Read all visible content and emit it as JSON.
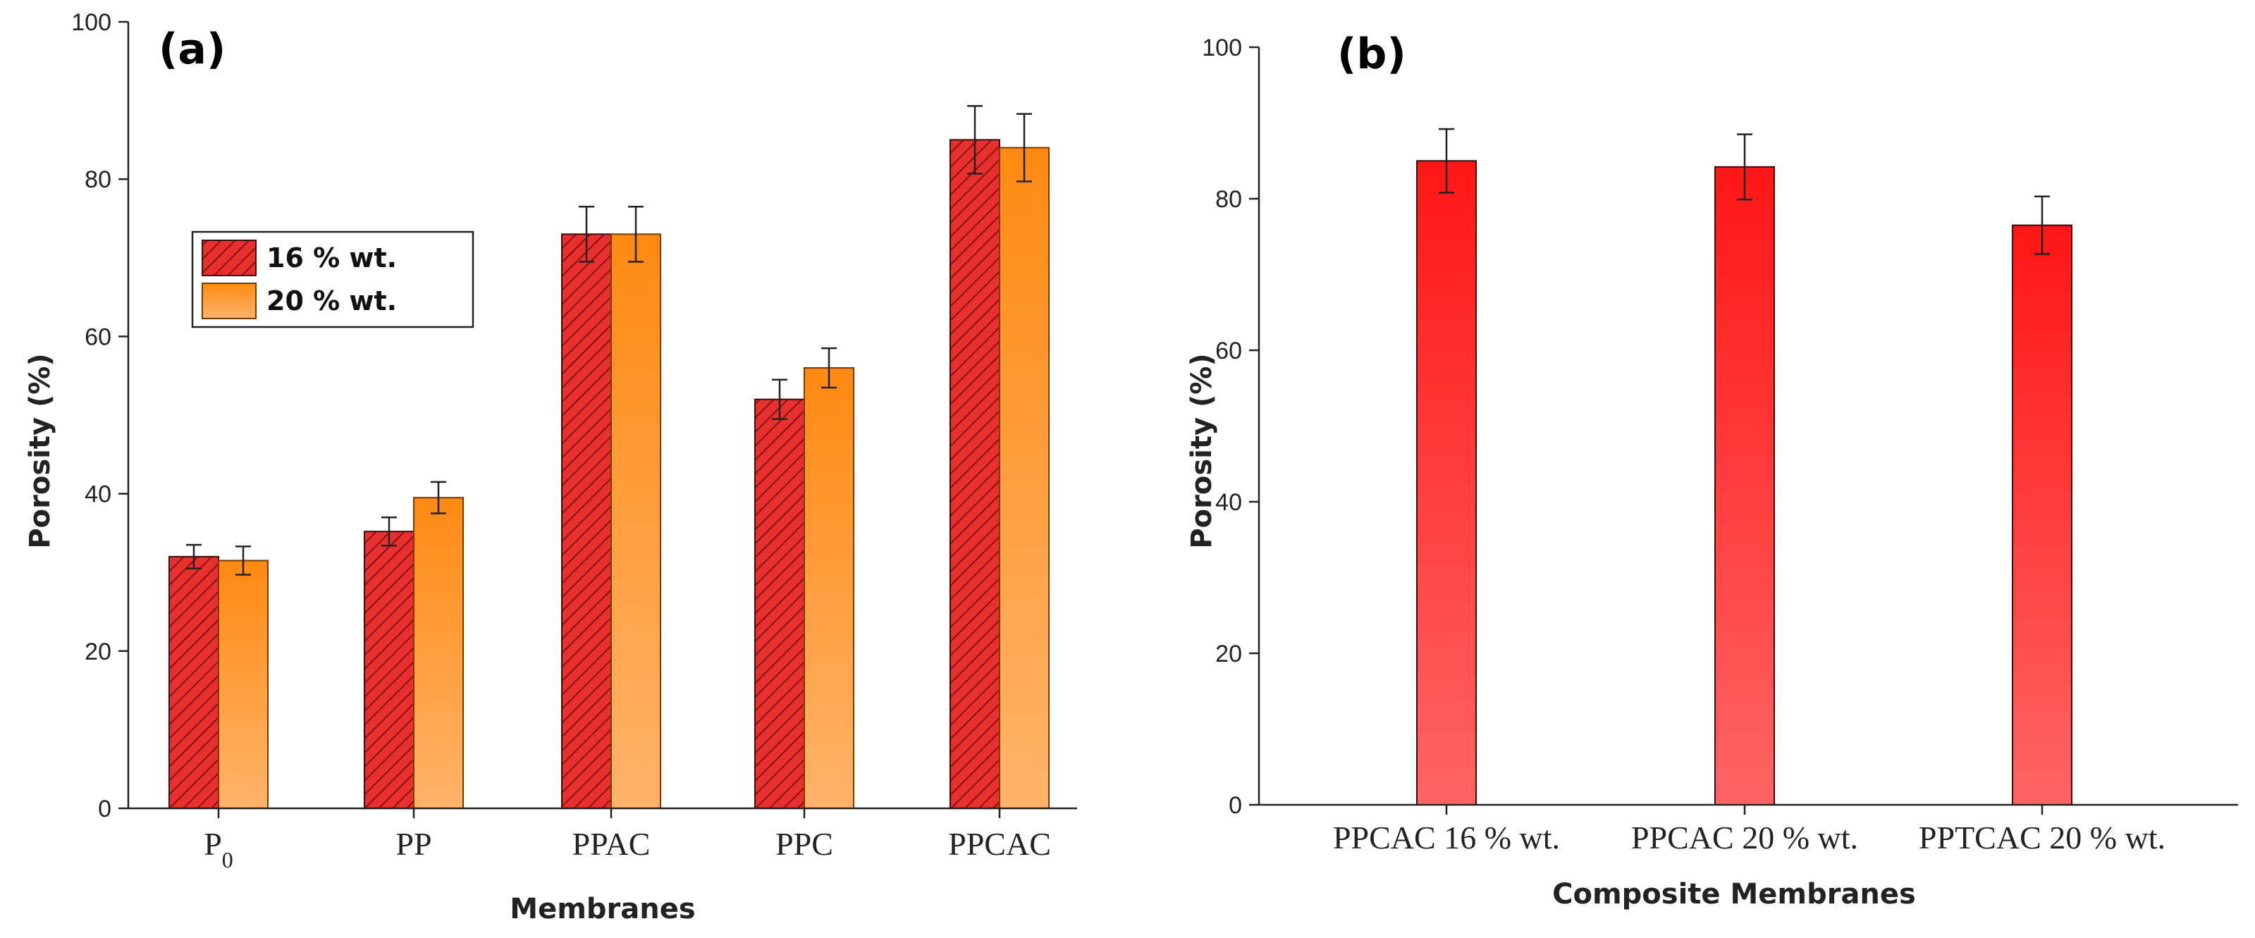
{
  "colors": {
    "series_16": "#e8302f",
    "series_16_hatch": "#8a1010",
    "series_20_top": "#ff8a12",
    "series_20_bottom": "#ffb36a",
    "panel_b_top": "#ff1616",
    "panel_b_bottom": "#ff6464"
  },
  "chart_data": [
    {
      "panel_label": "(a)",
      "type": "bar",
      "title": "",
      "xlabel": "Membranes",
      "ylabel": "Porosity (%)",
      "ylim": [
        0,
        100
      ],
      "yticks": [
        0,
        20,
        40,
        60,
        80,
        100
      ],
      "categories": [
        "P0",
        "PP",
        "PPAC",
        "PPC",
        "PPCAC"
      ],
      "legend_position": "upper-left",
      "series": [
        {
          "name": "16 % wt.",
          "values": [
            32,
            35.2,
            73,
            52,
            85
          ],
          "errors": [
            1.5,
            1.8,
            3.5,
            2.5,
            4.3
          ]
        },
        {
          "name": "20 % wt.",
          "values": [
            31.5,
            39.5,
            73,
            56,
            84
          ],
          "errors": [
            1.8,
            2.0,
            3.5,
            2.5,
            4.3
          ]
        }
      ]
    },
    {
      "panel_label": "(b)",
      "type": "bar",
      "title": "",
      "xlabel": "Composite Membranes",
      "ylabel": "Porosity (%)",
      "ylim": [
        0,
        100
      ],
      "yticks": [
        0,
        20,
        40,
        60,
        80,
        100
      ],
      "categories": [
        "PPCAC 16 % wt.",
        "PPCAC 20 % wt.",
        "PPTCAC 20 % wt."
      ],
      "series": [
        {
          "name": "Porosity",
          "values": [
            85,
            84.2,
            76.5
          ],
          "errors": [
            4.2,
            4.3,
            3.8
          ]
        }
      ]
    }
  ]
}
